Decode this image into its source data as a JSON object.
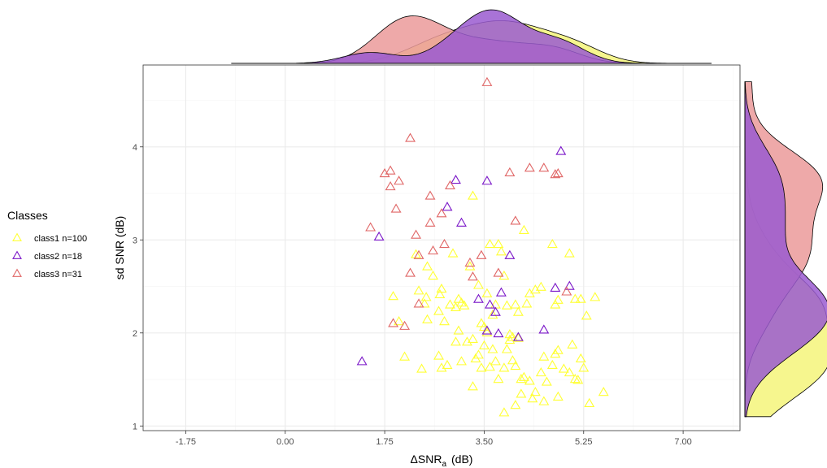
{
  "colors": {
    "class1": "#ffff33",
    "class1_fill": "#f5f57a",
    "class2": "#7a16c8",
    "class2_fill": "#9a5ad0",
    "class3": "#e06666",
    "class3_fill": "#eb9a9a",
    "grid_major": "#ebebeb",
    "grid_minor": "#f5f5f5",
    "panel_border": "#333333"
  },
  "chart_data": {
    "type": "scatter",
    "xlabel_main": "ΔSNR",
    "xlabel_sub": "a",
    "xlabel_unit": "(dB)",
    "ylabel": "sd SNR (dB)",
    "xlim": [
      -2.5,
      8.0
    ],
    "ylim": [
      0.95,
      4.88
    ],
    "x_ticks": [
      -1.75,
      0.0,
      1.75,
      3.5,
      5.25,
      7.0
    ],
    "x_tick_labels": [
      "-1.75",
      "0.00",
      "1.75",
      "3.50",
      "5.25",
      "7.00"
    ],
    "y_ticks": [
      1,
      2,
      3,
      4
    ],
    "y_tick_labels": [
      "1",
      "2",
      "3",
      "4"
    ],
    "grid": true,
    "legend": {
      "title": "Classes",
      "position": "left",
      "entries": [
        "class1 n=100",
        "class2 n=18",
        "class3 n=31"
      ]
    },
    "marker": "open-triangle",
    "marginal_x_density": true,
    "marginal_y_density": true,
    "series": [
      {
        "name": "class1 n=100",
        "points": [
          [
            1.9,
            2.39
          ],
          [
            2.0,
            2.12
          ],
          [
            2.3,
            2.84
          ],
          [
            2.35,
            2.45
          ],
          [
            2.45,
            2.31
          ],
          [
            2.48,
            2.38
          ],
          [
            2.5,
            2.71
          ],
          [
            2.5,
            2.14
          ],
          [
            2.6,
            2.61
          ],
          [
            2.7,
            2.23
          ],
          [
            2.72,
            2.41
          ],
          [
            2.75,
            2.47
          ],
          [
            2.8,
            2.12
          ],
          [
            2.9,
            2.3
          ],
          [
            3.0,
            2.27
          ],
          [
            3.05,
            2.36
          ],
          [
            3.1,
            2.32
          ],
          [
            3.15,
            2.29
          ],
          [
            2.95,
            2.85
          ],
          [
            3.25,
            2.71
          ],
          [
            3.3,
            3.47
          ],
          [
            3.4,
            2.51
          ],
          [
            3.45,
            2.1
          ],
          [
            3.5,
            2.06
          ],
          [
            3.55,
            2.42
          ],
          [
            3.6,
            2.95
          ],
          [
            3.65,
            2.19
          ],
          [
            3.7,
            2.3
          ],
          [
            3.75,
            2.95
          ],
          [
            3.8,
            2.87
          ],
          [
            3.85,
            2.61
          ],
          [
            3.9,
            2.29
          ],
          [
            4.0,
            1.95
          ],
          [
            4.05,
            2.3
          ],
          [
            4.1,
            2.22
          ],
          [
            4.2,
            3.1
          ],
          [
            4.25,
            2.31
          ],
          [
            4.3,
            2.42
          ],
          [
            4.4,
            2.46
          ],
          [
            4.5,
            2.49
          ],
          [
            4.7,
            2.95
          ],
          [
            4.75,
            2.3
          ],
          [
            4.8,
            2.35
          ],
          [
            5.0,
            2.85
          ],
          [
            5.1,
            2.36
          ],
          [
            5.2,
            2.36
          ],
          [
            5.3,
            2.18
          ],
          [
            5.45,
            2.38
          ],
          [
            2.1,
            1.74
          ],
          [
            2.4,
            1.61
          ],
          [
            2.7,
            1.75
          ],
          [
            2.75,
            1.62
          ],
          [
            2.85,
            1.65
          ],
          [
            3.0,
            1.9
          ],
          [
            3.1,
            1.69
          ],
          [
            3.2,
            1.9
          ],
          [
            3.3,
            1.93
          ],
          [
            3.35,
            1.72
          ],
          [
            3.4,
            1.76
          ],
          [
            3.45,
            1.62
          ],
          [
            3.5,
            1.86
          ],
          [
            3.55,
            2.0
          ],
          [
            3.6,
            1.63
          ],
          [
            3.65,
            1.82
          ],
          [
            3.7,
            1.69
          ],
          [
            3.75,
            1.5
          ],
          [
            3.85,
            1.62
          ],
          [
            3.9,
            1.82
          ],
          [
            3.95,
            1.92
          ],
          [
            4.0,
            1.7
          ],
          [
            4.05,
            1.64
          ],
          [
            4.1,
            1.94
          ],
          [
            4.15,
            1.5
          ],
          [
            4.2,
            1.52
          ],
          [
            4.3,
            1.48
          ],
          [
            4.4,
            1.36
          ],
          [
            4.5,
            1.57
          ],
          [
            4.55,
            1.74
          ],
          [
            4.6,
            1.47
          ],
          [
            4.7,
            1.65
          ],
          [
            4.75,
            1.77
          ],
          [
            4.8,
            1.81
          ],
          [
            4.9,
            1.61
          ],
          [
            5.0,
            1.57
          ],
          [
            5.05,
            1.87
          ],
          [
            5.1,
            1.5
          ],
          [
            5.15,
            1.49
          ],
          [
            5.2,
            1.72
          ],
          [
            5.25,
            1.62
          ],
          [
            5.35,
            1.24
          ],
          [
            5.6,
            1.36
          ],
          [
            3.3,
            1.42
          ],
          [
            3.85,
            1.14
          ],
          [
            4.05,
            1.22
          ],
          [
            4.15,
            1.34
          ],
          [
            4.35,
            1.29
          ],
          [
            4.55,
            1.26
          ],
          [
            4.8,
            1.31
          ],
          [
            3.05,
            2.02
          ],
          [
            3.95,
            1.98
          ]
        ]
      },
      {
        "name": "class2 n=18",
        "points": [
          [
            1.35,
            1.69
          ],
          [
            1.65,
            3.03
          ],
          [
            2.85,
            3.35
          ],
          [
            3.0,
            3.64
          ],
          [
            3.1,
            3.18
          ],
          [
            3.55,
            3.63
          ],
          [
            3.4,
            2.36
          ],
          [
            3.55,
            2.02
          ],
          [
            3.6,
            2.3
          ],
          [
            3.7,
            2.22
          ],
          [
            3.75,
            1.99
          ],
          [
            3.8,
            2.43
          ],
          [
            3.95,
            2.83
          ],
          [
            4.1,
            1.95
          ],
          [
            4.55,
            2.03
          ],
          [
            4.75,
            2.48
          ],
          [
            4.85,
            3.95
          ],
          [
            5.0,
            2.5
          ]
        ]
      },
      {
        "name": "class3 n=31",
        "points": [
          [
            1.5,
            3.13
          ],
          [
            1.75,
            3.71
          ],
          [
            1.85,
            3.74
          ],
          [
            1.85,
            3.57
          ],
          [
            2.0,
            3.63
          ],
          [
            1.95,
            3.33
          ],
          [
            2.2,
            4.09
          ],
          [
            2.3,
            3.05
          ],
          [
            2.55,
            3.47
          ],
          [
            2.55,
            3.18
          ],
          [
            2.75,
            3.28
          ],
          [
            2.8,
            2.95
          ],
          [
            2.6,
            2.88
          ],
          [
            2.35,
            2.83
          ],
          [
            2.2,
            2.64
          ],
          [
            2.35,
            2.31
          ],
          [
            1.9,
            2.1
          ],
          [
            2.1,
            2.07
          ],
          [
            2.9,
            3.58
          ],
          [
            3.25,
            2.75
          ],
          [
            3.3,
            2.6
          ],
          [
            3.45,
            2.83
          ],
          [
            3.55,
            4.69
          ],
          [
            3.75,
            2.64
          ],
          [
            3.95,
            3.72
          ],
          [
            4.05,
            3.2
          ],
          [
            4.3,
            3.77
          ],
          [
            4.55,
            3.77
          ],
          [
            4.75,
            3.7
          ],
          [
            4.8,
            3.71
          ],
          [
            4.95,
            2.44
          ]
        ]
      }
    ]
  }
}
